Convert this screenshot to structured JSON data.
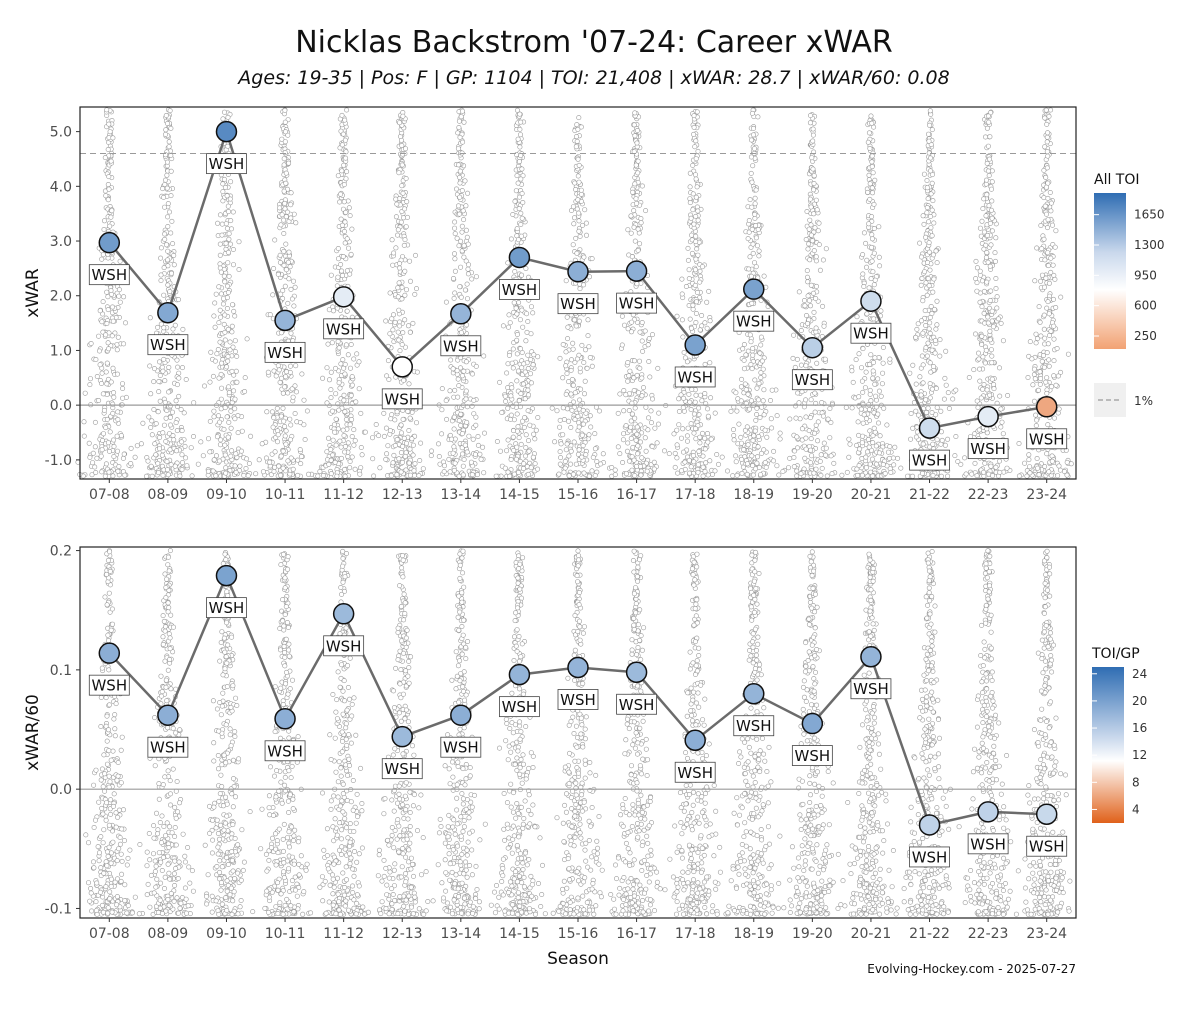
{
  "title": "Nicklas Backstrom '07-24: Career xWAR",
  "subtitle": "Ages: 19-35 | Pos: F | GP: 1104 | TOI: 21,408 | xWAR: 28.7 | xWAR/60: 0.08",
  "caption": "Evolving-Hockey.com - 2025-07-27",
  "colors": {
    "line": "#6b6b6b",
    "high": "#2f6db3",
    "mid": "#ffffff",
    "low": "#e0611a",
    "grid_border": "#222222",
    "background_points": "#9a9a9a"
  },
  "chart_data": [
    {
      "type": "line",
      "ylabel": "xWAR",
      "xlabel": "",
      "ylim": [
        -1.35,
        5.45
      ],
      "yticks": [
        "-1.0",
        "0.0",
        "1.0",
        "2.0",
        "3.0",
        "4.0",
        "5.0"
      ],
      "ytick_values": [
        -1,
        0,
        1,
        2,
        3,
        4,
        5
      ],
      "categories": [
        "07-08",
        "08-09",
        "09-10",
        "10-11",
        "11-12",
        "12-13",
        "13-14",
        "14-15",
        "15-16",
        "16-17",
        "17-18",
        "18-19",
        "19-20",
        "20-21",
        "21-22",
        "22-23",
        "23-24"
      ],
      "values": [
        2.97,
        1.69,
        5.0,
        1.55,
        1.98,
        0.7,
        1.67,
        2.7,
        2.44,
        2.45,
        1.1,
        2.12,
        1.05,
        1.9,
        -0.42,
        -0.21,
        -0.03
      ],
      "labels": [
        "WSH",
        "WSH",
        "WSH",
        "WSH",
        "WSH",
        "WSH",
        "WSH",
        "WSH",
        "WSH",
        "WSH",
        "WSH",
        "WSH",
        "WSH",
        "WSH",
        "WSH",
        "WSH",
        "WSH"
      ],
      "label_side": [
        "below",
        "below",
        "below",
        "below",
        "below",
        "below",
        "below",
        "below",
        "below",
        "below",
        "below",
        "below",
        "below",
        "below",
        "below",
        "below",
        "below"
      ],
      "color_values": [
        1500,
        1400,
        1650,
        1300,
        900,
        800,
        1300,
        1500,
        1350,
        1350,
        1450,
        1450,
        1100,
        1000,
        1000,
        900,
        450
      ],
      "reference_line": {
        "value": 4.6,
        "label": "1%"
      },
      "legend": {
        "title": "All TOI",
        "ticks": [
          "1650",
          "1300",
          "950",
          "600",
          "250"
        ],
        "tick_values": [
          1650,
          1300,
          950,
          600,
          250
        ],
        "range": [
          100,
          1900
        ],
        "mid": 800
      },
      "noise_range": [
        -1.3,
        5.4
      ]
    },
    {
      "type": "line",
      "ylabel": "xWAR/60",
      "xlabel": "Season",
      "ylim": [
        -0.108,
        0.203
      ],
      "yticks": [
        "-0.1",
        "0.0",
        "0.1",
        "0.2"
      ],
      "ytick_values": [
        -0.1,
        0.0,
        0.1,
        0.2
      ],
      "categories": [
        "07-08",
        "08-09",
        "09-10",
        "10-11",
        "11-12",
        "12-13",
        "13-14",
        "14-15",
        "15-16",
        "16-17",
        "17-18",
        "18-19",
        "19-20",
        "20-21",
        "21-22",
        "22-23",
        "23-24"
      ],
      "values": [
        0.114,
        0.062,
        0.179,
        0.059,
        0.147,
        0.044,
        0.062,
        0.096,
        0.102,
        0.098,
        0.041,
        0.08,
        0.055,
        0.111,
        -0.03,
        -0.019,
        -0.021
      ],
      "labels": [
        "WSH",
        "WSH",
        "WSH",
        "WSH",
        "WSH",
        "WSH",
        "WSH",
        "WSH",
        "WSH",
        "WSH",
        "WSH",
        "WSH",
        "WSH",
        "WSH",
        "WSH",
        "WSH",
        "WSH"
      ],
      "color_values": [
        19,
        19,
        20,
        19,
        18,
        18,
        19,
        18.5,
        18.5,
        18,
        19,
        18.5,
        19.5,
        18.5,
        16,
        16,
        15.5
      ],
      "legend": {
        "title": "TOI/GP",
        "ticks": [
          "24",
          "20",
          "16",
          "12",
          "8",
          "4"
        ],
        "tick_values": [
          24,
          20,
          16,
          12,
          8,
          4
        ],
        "range": [
          2,
          25
        ],
        "mid": 13
      },
      "noise_range": [
        -0.105,
        0.2
      ]
    }
  ]
}
